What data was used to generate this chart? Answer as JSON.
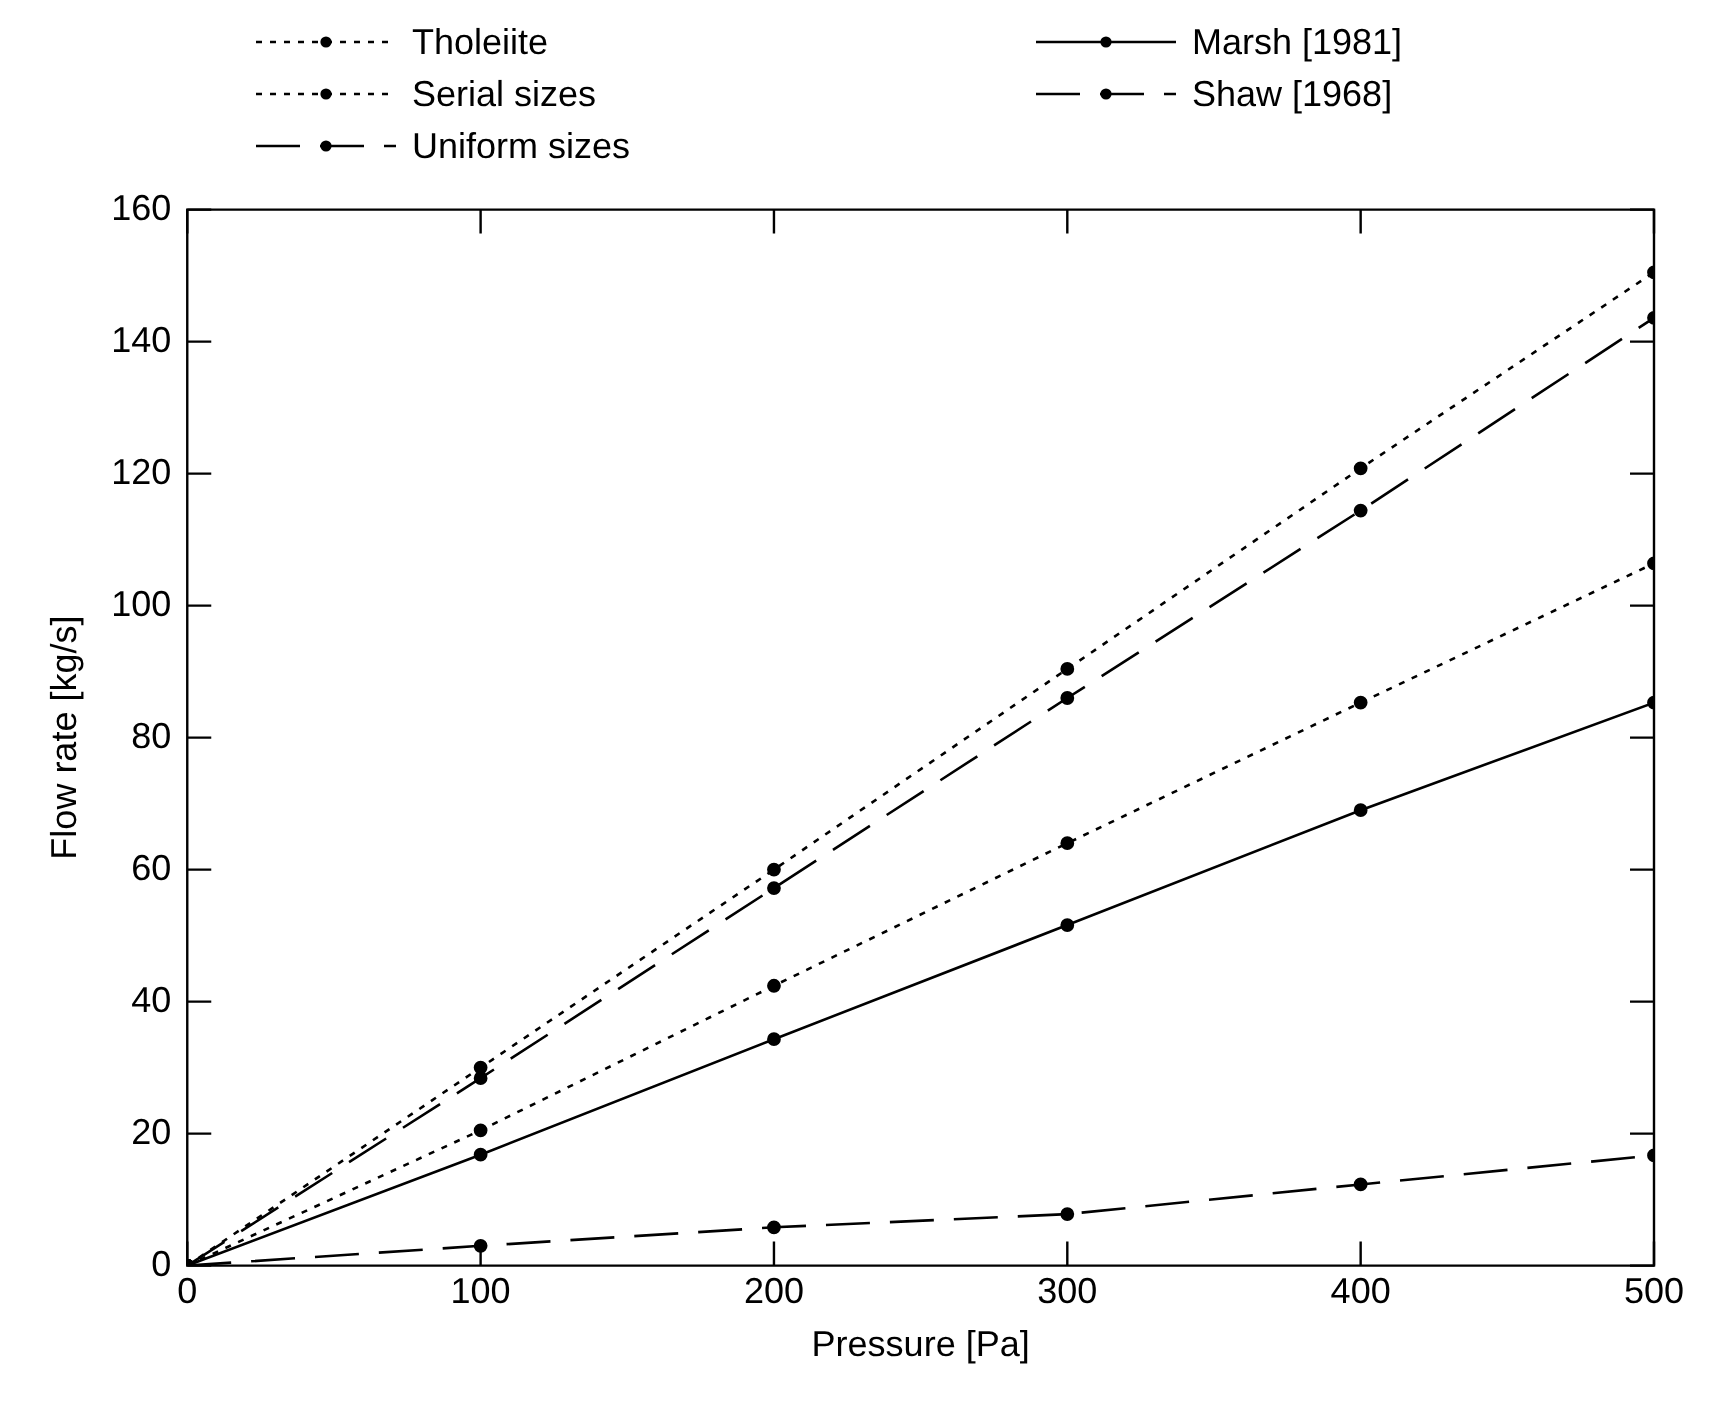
{
  "chart_data": {
    "type": "line",
    "xlabel": "Pressure [Pa]",
    "ylabel": "Flow rate [kg/s]",
    "x": [
      0,
      100,
      200,
      300,
      400,
      500
    ],
    "xlim": [
      0,
      500
    ],
    "xticks": [
      0,
      100,
      200,
      300,
      400,
      500
    ],
    "ylim": [
      0,
      160
    ],
    "yticks": [
      0,
      20,
      40,
      60,
      80,
      100,
      120,
      140,
      160
    ],
    "grid": false,
    "legend": "top",
    "marker": "circle",
    "series": [
      {
        "name": "Tholeiite",
        "color": "#000000",
        "line_style": "dotted",
        "values": [
          0,
          30,
          60,
          90.4,
          120.8,
          150.5
        ]
      },
      {
        "name": "Serial sizes",
        "color": "#000000",
        "line_style": "dotted",
        "values": [
          0,
          20.5,
          42.4,
          64,
          85.3,
          106.4
        ]
      },
      {
        "name": "Uniform sizes",
        "color": "#000000",
        "line_style": "dashed",
        "values": [
          0,
          28.4,
          57.2,
          86,
          114.4,
          143.6
        ]
      },
      {
        "name": "Marsh [1981]",
        "color": "#000000",
        "line_style": "solid",
        "values": [
          0,
          16.8,
          34.3,
          51.6,
          69,
          85.3
        ]
      },
      {
        "name": "Shaw [1968]",
        "color": "#000000",
        "line_style": "dashed",
        "values": [
          0,
          3,
          5.8,
          7.8,
          12.3,
          16.7
        ]
      }
    ]
  }
}
